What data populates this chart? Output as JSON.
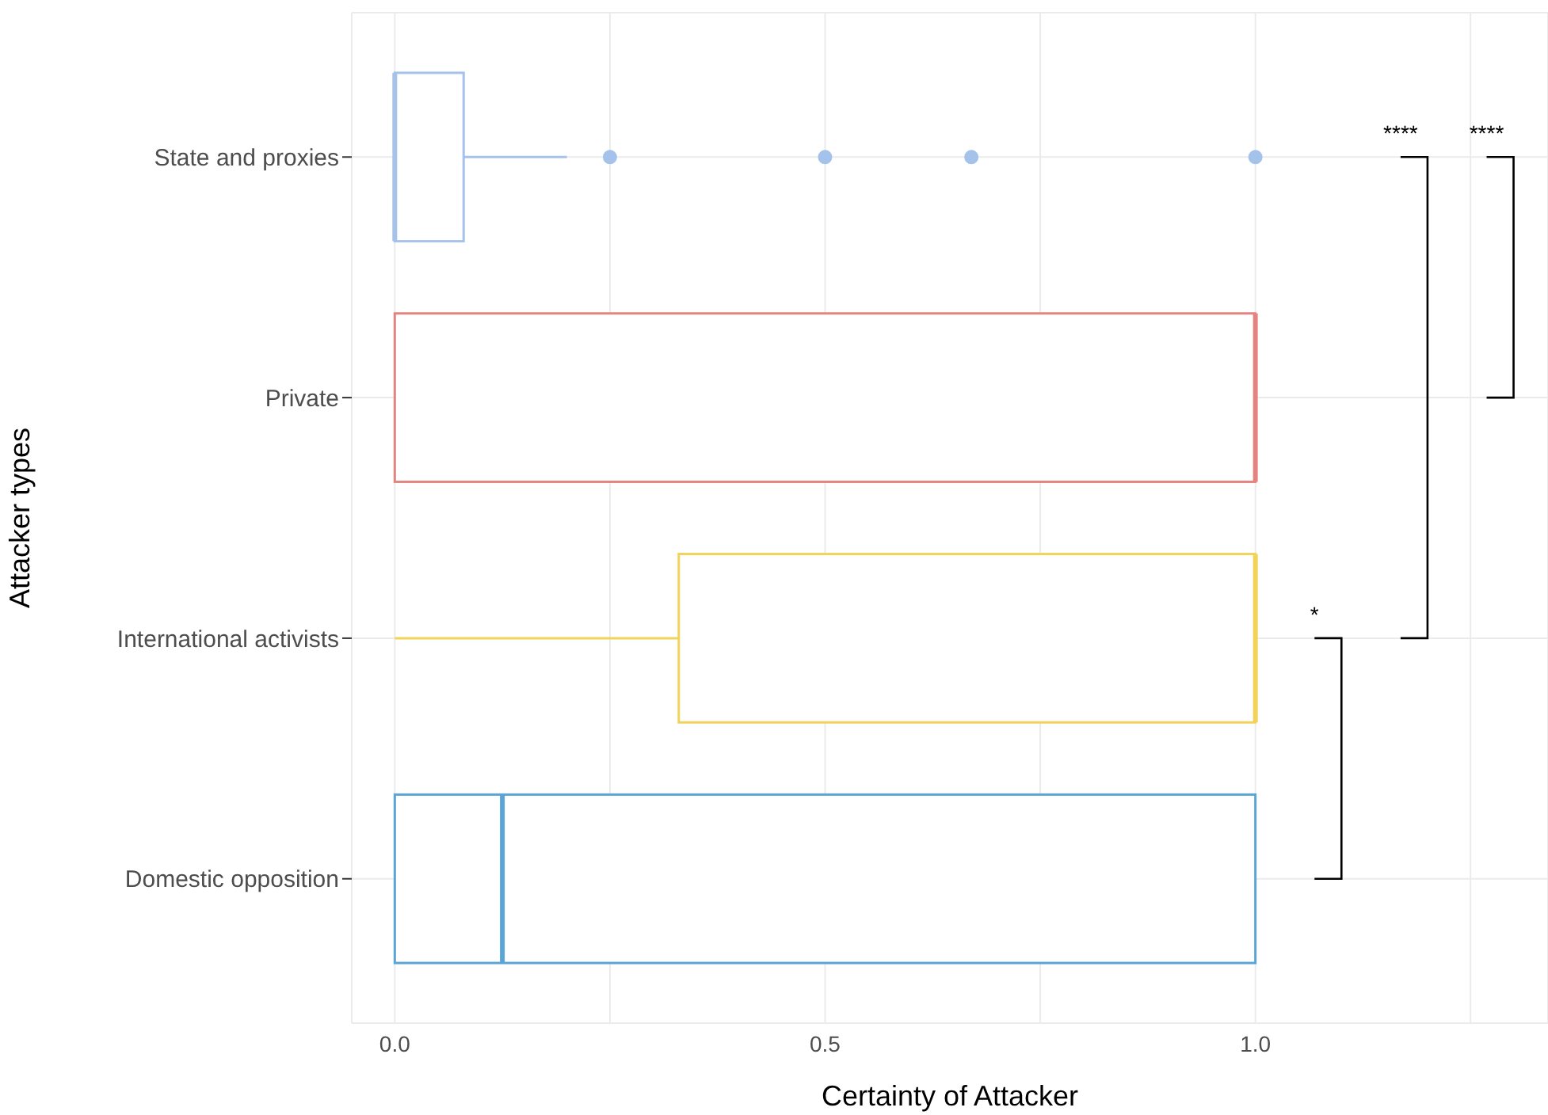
{
  "chart_data": {
    "type": "box",
    "orientation": "horizontal",
    "xlabel": "Certainty of Attacker",
    "ylabel": "Attacker types",
    "categories": [
      "State and proxies",
      "Private",
      "International activists",
      "Domestic opposition"
    ],
    "colors": [
      "#a4c2ea",
      "#e3857e",
      "#f2d35a",
      "#5aa5d6"
    ],
    "boxes": [
      {
        "low": 0,
        "q1": 0,
        "median": 0,
        "q3": 0.08,
        "high": 0.2,
        "outliers": [
          0.25,
          0.5,
          0.67,
          1
        ]
      },
      {
        "low": 0,
        "q1": 0,
        "median": 1,
        "q3": 1,
        "high": 1
      },
      {
        "low": 0,
        "q1": 0.33,
        "median": 1,
        "q3": 1,
        "high": 1
      },
      {
        "low": 0,
        "q1": 0,
        "median": 0.125,
        "q3": 1,
        "high": 1
      }
    ],
    "xlim": [
      -0.05,
      1.34
    ],
    "xticks": [
      {
        "value": 0,
        "label": "0.0"
      },
      {
        "value": 0.25,
        "label": null
      },
      {
        "value": 0.5,
        "label": "0.5"
      },
      {
        "value": 0.75,
        "label": null
      },
      {
        "value": 1,
        "label": "1.0"
      },
      {
        "value": 1.25,
        "label": null
      }
    ],
    "grid": true,
    "annotations": [
      "****",
      "****",
      "*"
    ]
  }
}
